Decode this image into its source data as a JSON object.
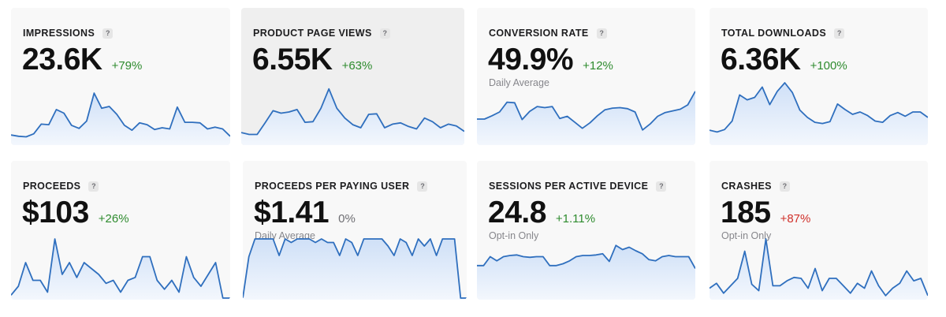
{
  "colors": {
    "line": "#2f6fbe",
    "fill_top": "#cfe0f7",
    "fill_bottom": "#f3f7fd",
    "positive": "#2e8b2e",
    "negative": "#d0302a"
  },
  "cards": [
    {
      "title": "IMPRESSIONS",
      "help": "?",
      "value": "23.6K",
      "delta": "+79%",
      "delta_type": "pos",
      "sub": "",
      "series": [
        0.14,
        0.12,
        0.11,
        0.16,
        0.32,
        0.31,
        0.56,
        0.5,
        0.3,
        0.25,
        0.37,
        0.83,
        0.58,
        0.61,
        0.48,
        0.3,
        0.22,
        0.34,
        0.31,
        0.23,
        0.26,
        0.24,
        0.6,
        0.35,
        0.35,
        0.34,
        0.24,
        0.27,
        0.24,
        0.12
      ]
    },
    {
      "title": "PRODUCT PAGE VIEWS",
      "help": "?",
      "value": "6.55K",
      "delta": "+63%",
      "delta_type": "pos",
      "sub": "",
      "series": [
        0.18,
        0.15,
        0.15,
        0.34,
        0.54,
        0.5,
        0.52,
        0.56,
        0.35,
        0.36,
        0.58,
        0.9,
        0.58,
        0.42,
        0.31,
        0.26,
        0.48,
        0.49,
        0.26,
        0.32,
        0.34,
        0.28,
        0.24,
        0.42,
        0.36,
        0.26,
        0.32,
        0.29,
        0.2
      ]
    },
    {
      "title": "CONVERSION RATE",
      "help": "?",
      "value": "49.9%",
      "delta": "+12%",
      "delta_type": "pos",
      "sub": "Daily Average",
      "series": [
        0.45,
        0.45,
        0.51,
        0.58,
        0.76,
        0.75,
        0.44,
        0.59,
        0.68,
        0.66,
        0.68,
        0.46,
        0.5,
        0.39,
        0.28,
        0.38,
        0.51,
        0.62,
        0.65,
        0.66,
        0.64,
        0.58,
        0.25,
        0.36,
        0.5,
        0.57,
        0.6,
        0.63,
        0.71,
        0.96
      ]
    },
    {
      "title": "TOTAL DOWNLOADS",
      "help": "?",
      "value": "6.36K",
      "delta": "+100%",
      "delta_type": "pos",
      "sub": "",
      "series": [
        0.22,
        0.19,
        0.23,
        0.37,
        0.8,
        0.72,
        0.76,
        0.93,
        0.64,
        0.86,
        1.0,
        0.84,
        0.55,
        0.43,
        0.35,
        0.33,
        0.36,
        0.65,
        0.56,
        0.48,
        0.52,
        0.46,
        0.37,
        0.35,
        0.46,
        0.51,
        0.45,
        0.52,
        0.52,
        0.43
      ]
    },
    {
      "title": "PROCEEDS",
      "help": "?",
      "value": "$103",
      "delta": "+26%",
      "delta_type": "pos",
      "sub": "",
      "series": [
        0.05,
        0.2,
        0.6,
        0.3,
        0.3,
        0.1,
        1.0,
        0.4,
        0.6,
        0.35,
        0.6,
        0.5,
        0.4,
        0.25,
        0.3,
        0.1,
        0.3,
        0.35,
        0.7,
        0.7,
        0.3,
        0.15,
        0.3,
        0.1,
        0.7,
        0.35,
        0.2,
        0.4,
        0.6,
        0.0,
        0.0
      ]
    },
    {
      "title": "PROCEEDS PER PAYING USER",
      "help": "?",
      "value": "$1.41",
      "delta": "0%",
      "delta_type": "neutral",
      "sub": "Daily Average",
      "series": [
        0.0,
        0.7,
        1.0,
        1.0,
        1.0,
        1.0,
        0.72,
        1.0,
        0.94,
        1.0,
        1.0,
        1.0,
        0.94,
        1.0,
        0.94,
        0.94,
        0.72,
        1.0,
        0.94,
        0.72,
        1.0,
        1.0,
        1.0,
        1.0,
        0.88,
        0.72,
        1.0,
        0.94,
        0.72,
        1.0,
        0.88,
        1.0,
        0.72,
        1.0,
        1.0,
        1.0,
        0.0,
        0.0
      ]
    },
    {
      "title": "SESSIONS PER ACTIVE DEVICE",
      "help": "?",
      "value": "24.8",
      "delta": "+1.11%",
      "delta_type": "pos",
      "sub": "Opt-in Only",
      "series": [
        0.55,
        0.55,
        0.7,
        0.63,
        0.7,
        0.72,
        0.73,
        0.7,
        0.69,
        0.7,
        0.7,
        0.55,
        0.55,
        0.58,
        0.63,
        0.7,
        0.72,
        0.72,
        0.73,
        0.75,
        0.62,
        0.89,
        0.82,
        0.86,
        0.8,
        0.75,
        0.65,
        0.63,
        0.7,
        0.72,
        0.7,
        0.7,
        0.7,
        0.5
      ]
    },
    {
      "title": "CRASHES",
      "help": "?",
      "value": "185",
      "delta": "+87%",
      "delta_type": "neg",
      "sub": "Opt-in Only",
      "series": [
        0.2,
        0.3,
        0.1,
        0.25,
        0.4,
        0.95,
        0.28,
        0.15,
        1.2,
        0.25,
        0.25,
        0.35,
        0.42,
        0.4,
        0.2,
        0.6,
        0.15,
        0.4,
        0.4,
        0.25,
        0.1,
        0.3,
        0.2,
        0.55,
        0.25,
        0.05,
        0.2,
        0.3,
        0.55,
        0.35,
        0.4,
        0.05
      ]
    }
  ]
}
